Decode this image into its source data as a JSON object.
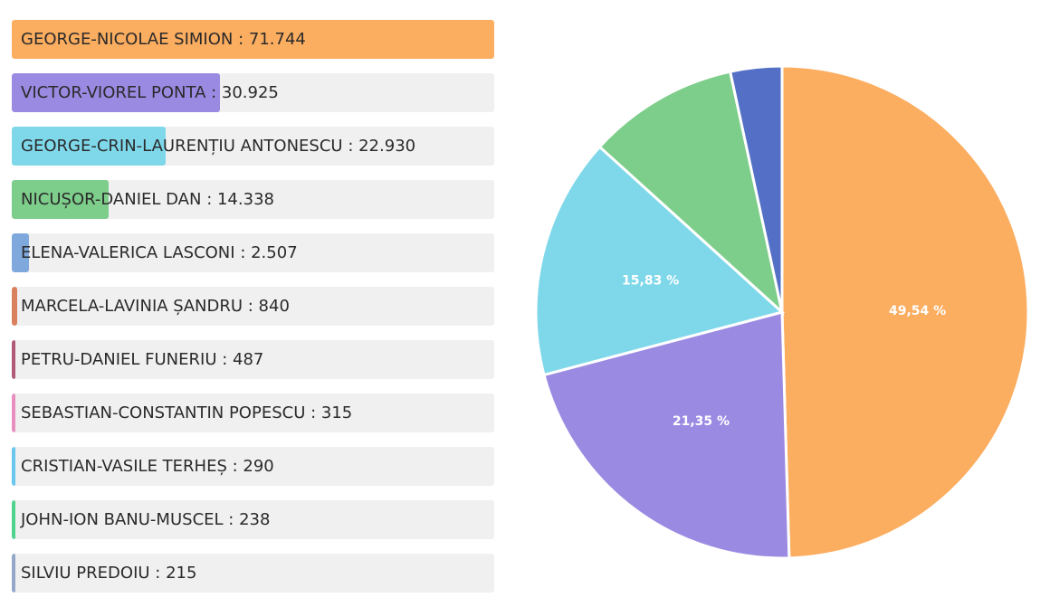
{
  "chart_data": [
    {
      "type": "bar",
      "orientation": "horizontal",
      "series": [
        {
          "name": "GEORGE-NICOLAE SIMION",
          "value": 71744,
          "value_label": "71.744",
          "color": "#fbad60"
        },
        {
          "name": "VICTOR-VIOREL PONTA",
          "value": 30925,
          "value_label": "30.925",
          "color": "#9b8ae2"
        },
        {
          "name": "GEORGE-CRIN-LAURENȚIU ANTONESCU",
          "value": 22930,
          "value_label": "22.930",
          "color": "#7fd8ea"
        },
        {
          "name": "NICUȘOR-DANIEL DAN",
          "value": 14338,
          "value_label": "14.338",
          "color": "#7dcd8b"
        },
        {
          "name": "ELENA-VALERICA LASCONI",
          "value": 2507,
          "value_label": "2.507",
          "color": "#7fa9dc"
        },
        {
          "name": "MARCELA-LAVINIA ȘANDRU",
          "value": 840,
          "value_label": "840",
          "color": "#d9805f"
        },
        {
          "name": "PETRU-DANIEL FUNERIU",
          "value": 487,
          "value_label": "487",
          "color": "#b05a77"
        },
        {
          "name": "SEBASTIAN-CONSTANTIN POPESCU",
          "value": 315,
          "value_label": "315",
          "color": "#e88fbf"
        },
        {
          "name": "CRISTIAN-VASILE TERHEȘ",
          "value": 290,
          "value_label": "290",
          "color": "#68c6ef"
        },
        {
          "name": "JOHN-ION BANU-MUSCEL",
          "value": 238,
          "value_label": "238",
          "color": "#4fd28c"
        },
        {
          "name": "SILVIU PREDOIU",
          "value": 215,
          "value_label": "215",
          "color": "#94a7c8"
        }
      ]
    },
    {
      "type": "pie",
      "slices": [
        {
          "value": 49.54,
          "label": "49,54 %",
          "color": "#fbad60"
        },
        {
          "value": 21.35,
          "label": "21,35 %",
          "color": "#9b8ae2"
        },
        {
          "value": 15.83,
          "label": "15,83 %",
          "color": "#7fd8ea"
        },
        {
          "value": 9.9,
          "label": "",
          "color": "#7dcd8b"
        },
        {
          "value": 3.38,
          "label": "",
          "color": "#5470c6"
        }
      ]
    }
  ]
}
